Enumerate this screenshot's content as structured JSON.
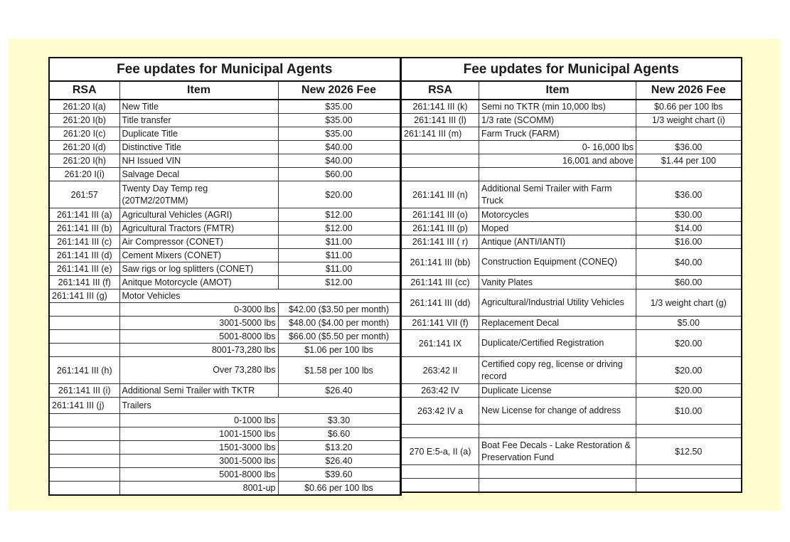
{
  "left": {
    "title": "Fee updates for Municipal Agents",
    "headers": [
      "RSA",
      "Item",
      "New 2026 Fee"
    ],
    "rows": [
      {
        "rsa": "261:20 I(a)",
        "item": "New Title",
        "fee": "$35.00"
      },
      {
        "rsa": "261:20 I(b)",
        "item": "Title transfer",
        "fee": "$35.00"
      },
      {
        "rsa": "261:20 I(c)",
        "item": "Duplicate Title",
        "fee": "$35.00"
      },
      {
        "rsa": "261:20 I(d)",
        "item": "Distinctive Title",
        "fee": "$40.00"
      },
      {
        "rsa": "261:20 I(h)",
        "item": "NH Issued VIN",
        "fee": "$40.00"
      },
      {
        "rsa": "261:20 I(i)",
        "item": "Salvage Decal",
        "fee": "$60.00"
      },
      {
        "rsa": "261:57",
        "item": "Twenty Day Temp reg (20TM2/20TMM)",
        "fee": "$20.00"
      },
      {
        "rsa": "261:141 III (a)",
        "item": "Agricultural Vehicles (AGRI)",
        "fee": "$12.00"
      },
      {
        "rsa": "261:141 III (b)",
        "item": "Agricultural Tractors (FMTR)",
        "fee": "$12.00"
      },
      {
        "rsa": "261:141 III (c)",
        "item": "Air Compressor (CONET)",
        "fee": "$11.00"
      },
      {
        "rsa": "261:141 III (d)",
        "item": "Cement Mixers (CONET)",
        "fee": "$11.00"
      },
      {
        "rsa": "261:141 III (e)",
        "item": "Saw rigs or log splitters (CONET)",
        "fee": "$11.00"
      },
      {
        "rsa": "261:141 III (f)",
        "item": "Anitque Motorcycle (AMOT)",
        "fee": "$12.00"
      },
      {
        "rsa": "261:141 III (g)",
        "item": "Motor Vehicles",
        "merged": true
      },
      {
        "rsa": "",
        "item": "0-3000 lbs",
        "fee": "$42.00 ($3.50 per month)",
        "sub": true
      },
      {
        "rsa": "",
        "item": "3001-5000 lbs",
        "fee": "$48.00 ($4.00 per month)",
        "sub": true
      },
      {
        "rsa": "",
        "item": "5001-8000 lbs",
        "fee": "$66.00 ($5.50 per month)",
        "sub": true
      },
      {
        "rsa": "",
        "item": "8001-73,280 lbs",
        "fee": "$1.06 per 100 lbs",
        "sub": true
      },
      {
        "rsa": "261:141 III (h)",
        "item": "Over 73,280 lbs",
        "fee": "$1.58 per 100 lbs",
        "sub": true
      },
      {
        "rsa": "261:141 III (i)",
        "item": "Additional Semi Trailer with TKTR",
        "fee": "$26.40"
      },
      {
        "rsa": "261:141 III (j)",
        "item": "Trailers",
        "merged": true
      },
      {
        "rsa": "",
        "item": "0-1000 lbs",
        "fee": "$3.30",
        "sub": true
      },
      {
        "rsa": "",
        "item": "1001-1500 lbs",
        "fee": "$6.60",
        "sub": true
      },
      {
        "rsa": "",
        "item": "1501-3000 lbs",
        "fee": "$13.20",
        "sub": true
      },
      {
        "rsa": "",
        "item": "3001-5000 lbs",
        "fee": "$26.40",
        "sub": true
      },
      {
        "rsa": "",
        "item": "5001-8000 lbs",
        "fee": "$39.60",
        "sub": true
      },
      {
        "rsa": "",
        "item": "8001-up",
        "fee": "$0.66 per 100 lbs",
        "sub": true
      }
    ]
  },
  "right": {
    "title": "Fee updates for Municipal Agents",
    "headers": [
      "RSA",
      "Item",
      "New 2026 Fee"
    ],
    "rows": [
      {
        "rsa": "261:141 III (k)",
        "item": "Semi no TKTR (min 10,000 lbs)",
        "fee": "$0.66 per 100 lbs"
      },
      {
        "rsa": "261:141 III (l)",
        "item": "1/3 rate (SCOMM)",
        "fee": "1/3 weight chart (i)"
      },
      {
        "rsa": "261:141 III (m)",
        "item": "Farm Truck (FARM)",
        "fee": ""
      },
      {
        "rsa": "",
        "item": "0- 16,000 lbs",
        "fee": "$36.00",
        "sub": true
      },
      {
        "rsa": "",
        "item": "16,001 and above",
        "fee": "$1.44 per 100",
        "sub": true
      },
      {
        "rsa": "",
        "item": "",
        "fee": ""
      },
      {
        "rsa": "261:141 III (n)",
        "item": "Additional Semi Trailer with Farm Truck",
        "fee": "$36.00"
      },
      {
        "rsa": "261:141 III (o)",
        "item": "Motorcycles",
        "fee": "$30.00"
      },
      {
        "rsa": "261:141 III (p)",
        "item": "Moped",
        "fee": "$14.00"
      },
      {
        "rsa": "261:141 III ( r)",
        "item": "Antique (ANTI/IANTI)",
        "fee": "$16.00"
      },
      {
        "rsa": "261:141 III (bb)",
        "item": "Construction Equipment (CONEQ)",
        "fee": "$40.00"
      },
      {
        "rsa": "261:141 III (cc)",
        "item": "Vanity Plates",
        "fee": "$60.00"
      },
      {
        "rsa": "261:141 III (dd)",
        "item": "Agricultural/Industrial Utility Vehicles",
        "fee": "1/3 weight chart (g)"
      },
      {
        "rsa": "261:141 VII (f)",
        "item": "Replacement Decal",
        "fee": "$5.00"
      },
      {
        "rsa": "261:141 IX",
        "item": "Duplicate/Certified Registration",
        "fee": "$20.00"
      },
      {
        "rsa": "263:42 II",
        "item": "Certified copy reg, license or driving record",
        "fee": "$20.00"
      },
      {
        "rsa": "263:42 IV",
        "item": "Duplicate License",
        "fee": "$20.00"
      },
      {
        "rsa": "263:42 IV a",
        "item": "New License for change of address",
        "fee": "$10.00"
      },
      {
        "rsa": "",
        "item": "",
        "fee": ""
      },
      {
        "rsa": "270 E:5-a, II (a)",
        "item": "Boat Fee Decals - Lake Restoration & Preservation Fund",
        "fee": "$12.50"
      },
      {
        "rsa": "",
        "item": "",
        "fee": ""
      },
      {
        "rsa": "",
        "item": "",
        "fee": ""
      }
    ]
  }
}
